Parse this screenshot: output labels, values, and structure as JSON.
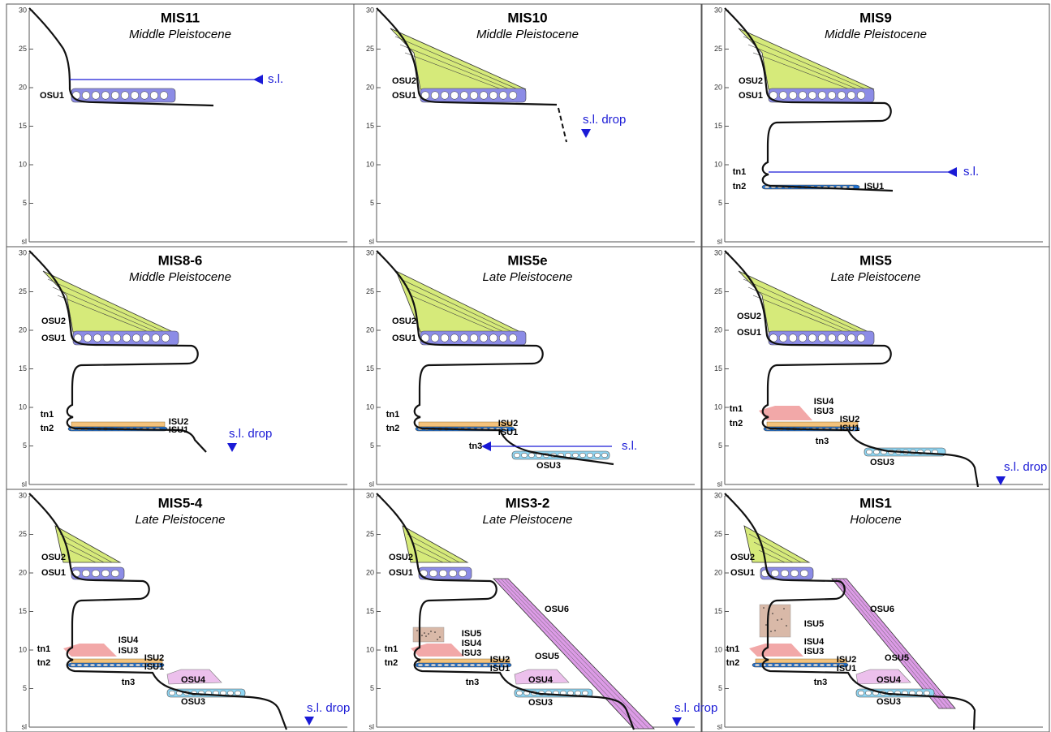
{
  "axis_ticks": [
    30,
    25,
    20,
    15,
    10,
    5,
    "sl"
  ],
  "panels": [
    {
      "title": "MIS11",
      "subtitle": "Middle Pleistocene",
      "labels": [
        "OSU1"
      ],
      "sea_level": "s.l."
    },
    {
      "title": "MIS10",
      "subtitle": "Middle Pleistocene",
      "labels": [
        "OSU2",
        "OSU1"
      ],
      "sea_level": "s.l. drop"
    },
    {
      "title": "MIS9",
      "subtitle": "Middle Pleistocene",
      "labels": [
        "OSU2",
        "OSU1",
        "tn1",
        "tn2",
        "ISU1"
      ],
      "sea_level": "s.l."
    },
    {
      "title": "MIS8-6",
      "subtitle": "Middle Pleistocene",
      "labels": [
        "OSU2",
        "OSU1",
        "tn1",
        "tn2",
        "ISU2",
        "ISU1"
      ],
      "sea_level": "s.l. drop"
    },
    {
      "title": "MIS5e",
      "subtitle": "Late Pleistocene",
      "labels": [
        "OSU2",
        "OSU1",
        "tn1",
        "tn2",
        "ISU2",
        "ISU1",
        "tn3",
        "OSU3"
      ],
      "sea_level": "s.l."
    },
    {
      "title": "MIS5",
      "subtitle": "Late Pleistocene",
      "labels": [
        "OSU2",
        "OSU1",
        "tn1",
        "tn2",
        "ISU4",
        "ISU3",
        "ISU2",
        "ISU1",
        "tn3",
        "OSU3"
      ],
      "sea_level": "s.l. drop"
    },
    {
      "title": "MIS5-4",
      "subtitle": "Late Pleistocene",
      "labels": [
        "OSU2",
        "OSU1",
        "tn1",
        "tn2",
        "ISU4",
        "ISU3",
        "ISU2",
        "ISU1",
        "tn3",
        "OSU4",
        "OSU3"
      ],
      "sea_level": "s.l. drop"
    },
    {
      "title": "MIS3-2",
      "subtitle": "Late Pleistocene",
      "labels": [
        "OSU2",
        "OSU1",
        "tn1",
        "tn2",
        "ISU5",
        "ISU4",
        "ISU3",
        "ISU2",
        "ISU1",
        "tn3",
        "OSU6",
        "OSU5",
        "OSU4",
        "OSU3"
      ],
      "sea_level": "s.l. drop"
    },
    {
      "title": "MIS1",
      "subtitle": "Holocene",
      "labels": [
        "OSU2",
        "OSU1",
        "ISU5",
        "tn1",
        "tn2",
        "ISU4",
        "ISU3",
        "ISU2",
        "ISU1",
        "tn3",
        "OSU6",
        "OSU5",
        "OSU4",
        "OSU3"
      ]
    }
  ]
}
